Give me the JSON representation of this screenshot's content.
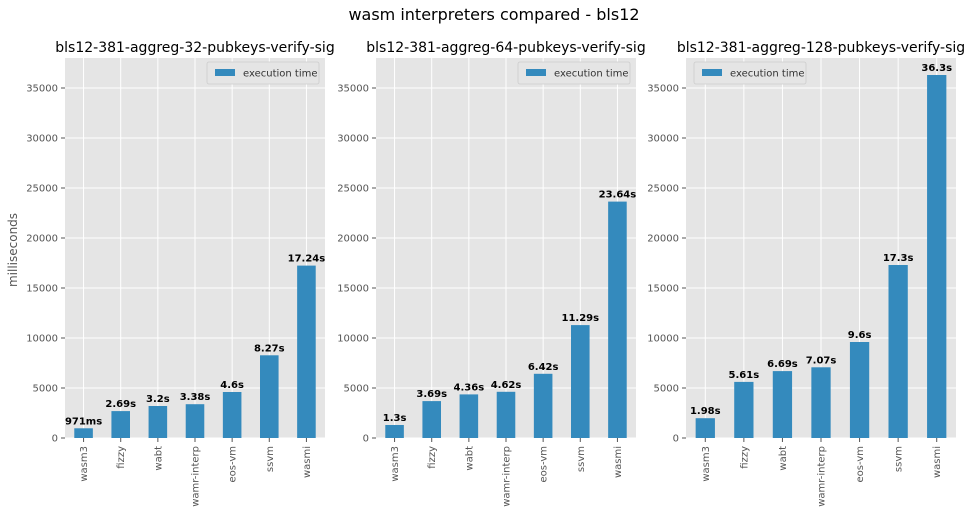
{
  "figure_title": "wasm interpreters compared - bls12",
  "ylabel": "milliseconds",
  "colors": {
    "bar": "#348ABD",
    "background": "#E5E5E5",
    "grid": "#FFFFFF"
  },
  "chart_data": [
    {
      "type": "bar",
      "title": "bls12-381-aggreg-32-pubkeys-verify-sig",
      "categories": [
        "wasm3",
        "fizzy",
        "wabt",
        "wamr-interp",
        "eos-vm",
        "ssvm",
        "wasmi"
      ],
      "series": [
        {
          "name": "execution time",
          "values": [
            971,
            2690,
            3200,
            3380,
            4600,
            8270,
            17240
          ]
        }
      ],
      "data_labels": [
        "971ms",
        "2.69s",
        "3.2s",
        "3.38s",
        "4.6s",
        "8.27s",
        "17.24s"
      ],
      "ylim": [
        0,
        38000
      ],
      "yticks": [
        0,
        5000,
        10000,
        15000,
        20000,
        25000,
        30000,
        35000
      ],
      "legend": "top-right",
      "grid": true
    },
    {
      "type": "bar",
      "title": "bls12-381-aggreg-64-pubkeys-verify-sig",
      "categories": [
        "wasm3",
        "fizzy",
        "wabt",
        "wamr-interp",
        "eos-vm",
        "ssvm",
        "wasmi"
      ],
      "series": [
        {
          "name": "execution time",
          "values": [
            1300,
            3690,
            4360,
            4620,
            6420,
            11290,
            23640
          ]
        }
      ],
      "data_labels": [
        "1.3s",
        "3.69s",
        "4.36s",
        "4.62s",
        "6.42s",
        "11.29s",
        "23.64s"
      ],
      "ylim": [
        0,
        38000
      ],
      "yticks": [
        0,
        5000,
        10000,
        15000,
        20000,
        25000,
        30000,
        35000
      ],
      "legend": "top-right",
      "grid": true
    },
    {
      "type": "bar",
      "title": "bls12-381-aggreg-128-pubkeys-verify-sig",
      "categories": [
        "wasm3",
        "fizzy",
        "wabt",
        "wamr-interp",
        "eos-vm",
        "ssvm",
        "wasmi"
      ],
      "series": [
        {
          "name": "execution time",
          "values": [
            1980,
            5610,
            6690,
            7070,
            9600,
            17300,
            36300
          ]
        }
      ],
      "data_labels": [
        "1.98s",
        "5.61s",
        "6.69s",
        "7.07s",
        "9.6s",
        "17.3s",
        "36.3s"
      ],
      "ylim": [
        0,
        38000
      ],
      "yticks": [
        0,
        5000,
        10000,
        15000,
        20000,
        25000,
        30000,
        35000
      ],
      "legend": "top-left",
      "grid": true
    }
  ]
}
